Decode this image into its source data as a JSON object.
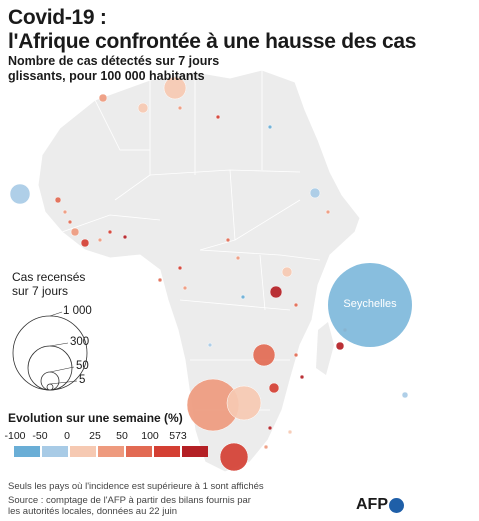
{
  "title": "Covid-19 :\nl'Afrique confrontée à une hausse des cas",
  "subtitle": "Nombre de cas détectés sur 7 jours glissants, pour 100 000 habitants",
  "size_legend": {
    "title": "Cas recensés sur 7 jours",
    "values": [
      "1 000",
      "300",
      "50",
      "5"
    ]
  },
  "evolution_legend": {
    "title": "Evolution sur une semaine (%)",
    "ticks": [
      "-100",
      "-50",
      "0",
      "25",
      "50",
      "100",
      "573"
    ],
    "colors": [
      "#6aaed6",
      "#a8cbe6",
      "#f6c9b2",
      "#ee9a7e",
      "#e26a53",
      "#d43f33",
      "#b42025"
    ]
  },
  "seychelles_label": "Seychelles",
  "footnote": "Seuls les pays où l'incidence est supérieure à 1 sont affichés",
  "source": "Source : comptage de l'AFP à partir des bilans fournis par les autorités locales, données au 22 juin",
  "logo": "AFP",
  "colors": {
    "land": "#ececec",
    "border": "#ffffff"
  }
}
